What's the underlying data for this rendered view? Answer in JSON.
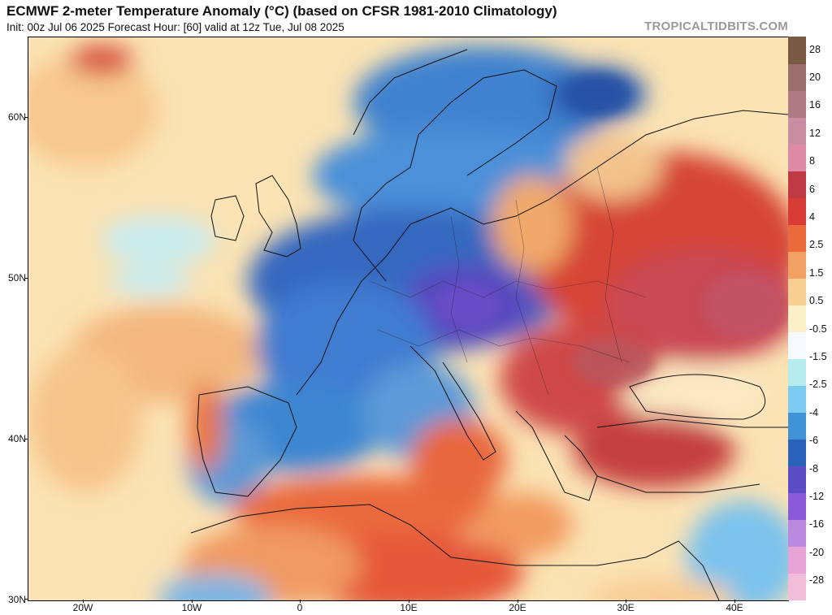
{
  "header": {
    "title": "ECMWF 2-meter Temperature Anomaly (°C) (based on CFSR 1981-2010 Climatology)",
    "subtitle": "Init: 00z Jul 06 2025   Forecast Hour: [60]   valid at 12z Tue, Jul 08 2025",
    "credit": "TROPICALTIDBITS.COM"
  },
  "axes": {
    "lat_labels": [
      "60N",
      "50N",
      "40N",
      "30N"
    ],
    "lon_labels": [
      "20W",
      "10W",
      "0",
      "10E",
      "20E",
      "30E",
      "40E"
    ]
  },
  "legend": {
    "labels": [
      "28",
      "20",
      "16",
      "12",
      "8",
      "6",
      "4",
      "2.5",
      "1.5",
      "0.5",
      "-0.5",
      "-1.5",
      "-2.5",
      "-4",
      "-6",
      "-8",
      "-12",
      "-16",
      "-20",
      "-28"
    ],
    "colors": [
      "#7a5a45",
      "#9c6f6c",
      "#b07a84",
      "#c88da0",
      "#de8aa6",
      "#c03a44",
      "#d83b36",
      "#ea6a3c",
      "#f2a063",
      "#f8cf93",
      "#fcf0c8",
      "#f4fafd",
      "#b7ecef",
      "#7ccbf0",
      "#3f93d6",
      "#2a64b8",
      "#5c4cc6",
      "#8a5ad8",
      "#b98ae0",
      "#e7a3d5",
      "#f2bdd8"
    ]
  },
  "icons": {
    "map": "temperature-anomaly-map",
    "colorbar": "colorbar"
  }
}
